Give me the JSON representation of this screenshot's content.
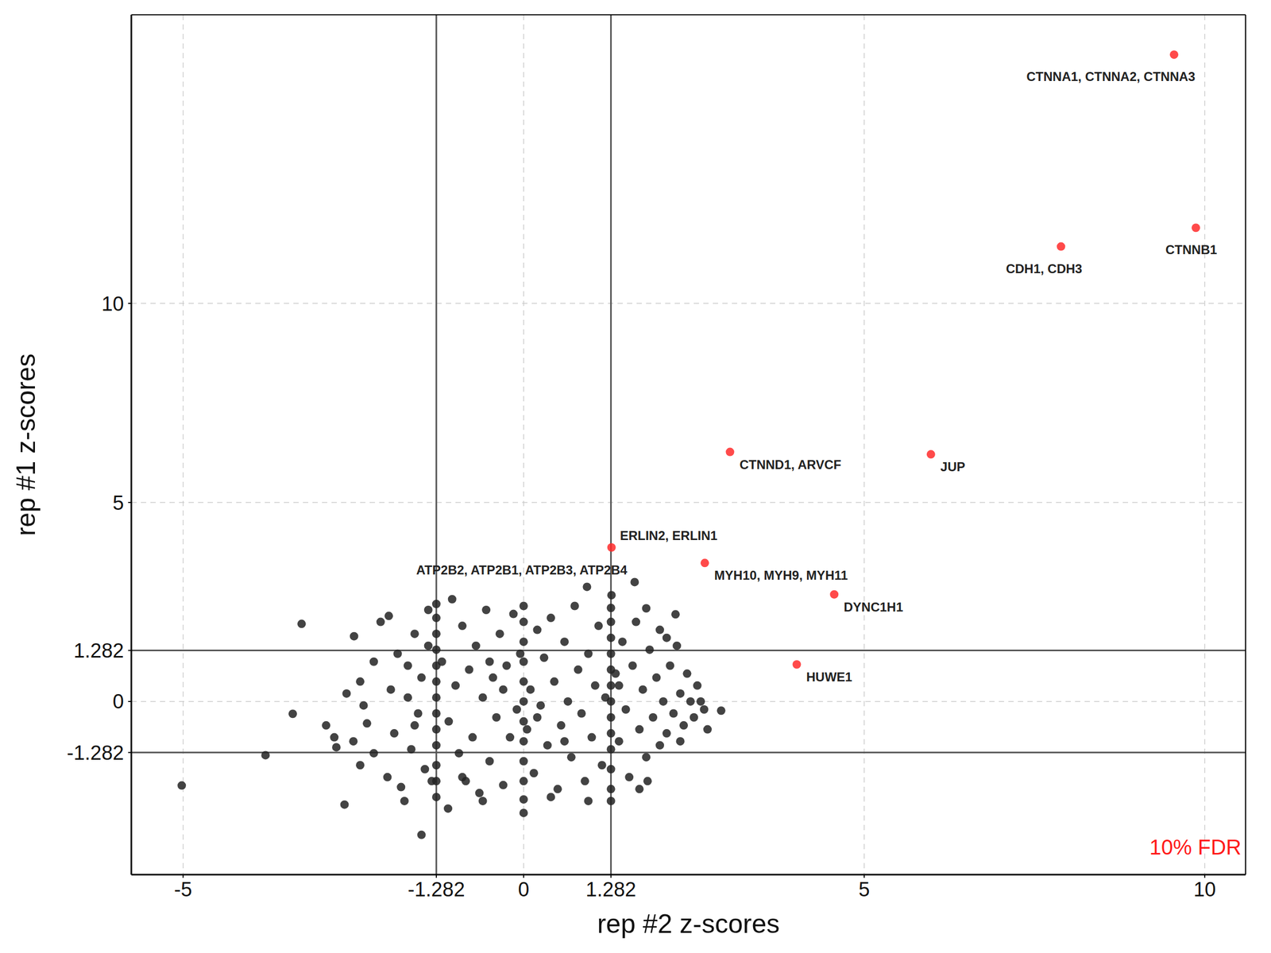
{
  "chart_data": {
    "type": "scatter",
    "x_label": "rep #2 z-scores",
    "y_label": "rep #1 z-scores",
    "xlim": [
      -5.76,
      10.6
    ],
    "ylim": [
      -4.35,
      17.25
    ],
    "xticks": [
      -5,
      -1.282,
      0,
      1.282,
      5,
      10
    ],
    "yticks": [
      -1.282,
      0,
      1.282,
      5,
      10
    ],
    "grid": true,
    "reference_lines": {
      "x": [
        -1.282,
        1.282
      ],
      "y": [
        -1.282,
        1.282
      ]
    },
    "annotations": [
      {
        "text": "10% FDR",
        "color": "#ff1a1a"
      }
    ],
    "series": [
      {
        "color": "#222222",
        "marker": "circle",
        "x": [
          -5.02,
          -3.79,
          -3.39,
          -3.26,
          -2.63,
          -2.49,
          -1.5,
          -1.11,
          0,
          2.9,
          2.7,
          0.93,
          1.29,
          1.8,
          2.23,
          -1.98,
          -1.4,
          -1.05,
          -2.78,
          -2.75,
          -2.4,
          -2.4,
          -2.35,
          -2.3,
          -2.2,
          -2.2,
          -2.0,
          -1.95,
          -1.9,
          -1.85,
          -1.8,
          -1.7,
          -1.65,
          -1.6,
          -1.55,
          -1.5,
          -1.45,
          -1.282,
          -1.282,
          -1.282,
          -1.282,
          -1.282,
          -1.282,
          -1.282,
          -1.282,
          -1.282,
          -1.282,
          -1.282,
          -1.282,
          -1.282,
          -1.2,
          -1.1,
          -1.0,
          -0.95,
          -0.9,
          -0.85,
          -0.8,
          -0.75,
          -0.7,
          -0.65,
          -0.6,
          -0.55,
          -0.5,
          -0.45,
          -0.4,
          -0.35,
          -0.3,
          -0.25,
          -0.2,
          -0.15,
          -0.1,
          -0.05,
          0,
          0,
          0,
          0,
          0,
          0,
          0,
          0,
          0,
          0,
          0,
          0.05,
          0.1,
          0.15,
          0.2,
          0.25,
          0.3,
          0.35,
          0.4,
          0.45,
          0.5,
          0.55,
          0.6,
          0.65,
          0.7,
          0.75,
          0.8,
          0.85,
          0.9,
          0.95,
          1.0,
          1.05,
          1.1,
          1.15,
          1.2,
          1.282,
          1.282,
          1.282,
          1.282,
          1.282,
          1.282,
          1.282,
          1.282,
          1.282,
          1.282,
          1.282,
          1.282,
          1.282,
          1.35,
          1.4,
          1.45,
          1.5,
          1.55,
          1.6,
          1.65,
          1.7,
          1.75,
          1.8,
          1.85,
          1.9,
          1.95,
          2.0,
          2.0,
          2.05,
          2.1,
          2.15,
          2.2,
          2.25,
          2.3,
          2.35,
          2.4,
          2.45,
          2.5,
          2.55,
          2.6,
          2.65,
          -2.9,
          -2.6,
          -2.1,
          -1.75,
          -1.6,
          -1.4,
          -1.35,
          -0.9,
          -0.6,
          0.4,
          0.95,
          1.7,
          1.82,
          2.1,
          2.3,
          -0.3,
          0.2,
          -0.5,
          0.6,
          -1.7,
          1.4,
          -2.5
        ],
        "y": [
          -2.11,
          -1.35,
          -0.31,
          1.95,
          -2.59,
          1.64,
          -3.35,
          -2.69,
          -2.46,
          -0.23,
          -0.7,
          2.88,
          2.67,
          2.34,
          2.19,
          2.15,
          2.3,
          2.57,
          -0.9,
          -1.15,
          -1.6,
          0.5,
          -0.1,
          -0.55,
          1.0,
          -1.3,
          -1.9,
          0.3,
          -0.8,
          1.2,
          -2.15,
          0.9,
          -1.2,
          1.7,
          -0.3,
          0.6,
          -1.7,
          -2.0,
          -1.6,
          -1.1,
          -0.7,
          -0.3,
          0.1,
          0.5,
          0.9,
          1.3,
          1.7,
          2.1,
          2.45,
          -2.4,
          1.0,
          -0.5,
          0.4,
          -1.3,
          1.9,
          -2.0,
          0.8,
          -0.9,
          1.4,
          -2.3,
          0.1,
          2.3,
          -1.5,
          0.6,
          -0.4,
          1.7,
          -2.1,
          0.9,
          -0.9,
          2.2,
          -0.2,
          1.2,
          -2.0,
          -1.5,
          -1.0,
          -0.5,
          0,
          0.5,
          1.0,
          1.5,
          2.0,
          2.4,
          -2.8,
          -0.7,
          0.3,
          -1.8,
          1.8,
          -0.1,
          1.1,
          -1.1,
          2.1,
          0.5,
          -2.2,
          -0.6,
          1.5,
          0,
          -1.4,
          2.4,
          0.8,
          -0.3,
          -2.0,
          1.2,
          -0.9,
          0.4,
          1.9,
          -1.6,
          0.1,
          -2.2,
          -1.7,
          -1.2,
          -0.8,
          -0.4,
          0,
          0.4,
          0.8,
          1.2,
          1.6,
          2.0,
          2.35,
          -2.5,
          0.7,
          -1.0,
          1.5,
          -0.2,
          -1.9,
          0.9,
          2.0,
          -0.7,
          0.3,
          -1.4,
          1.3,
          -0.4,
          0.6,
          -1.1,
          1.8,
          0,
          -0.8,
          0.9,
          -0.3,
          1.4,
          0.2,
          -0.6,
          0.7,
          0,
          -0.4,
          0.4,
          0,
          -0.2,
          -0.6,
          0.2,
          2.0,
          -2.5,
          -0.6,
          1.4,
          -2.0,
          -1.9,
          -2.5,
          -2.4,
          -2.5,
          -2.2,
          -2.0,
          1.6,
          -1.0,
          0.3,
          -0.4,
          1.0,
          -1.0,
          0.1,
          0.4,
          -1.0
        ]
      },
      {
        "color": "#222222",
        "marker": "circle",
        "x": [
          1.63
        ],
        "y": [
          3.0
        ],
        "labels": [
          "ATP2B2, ATP2B1, ATP2B3, ATP2B4"
        ]
      },
      {
        "color": "#ff2a2a",
        "marker": "circle",
        "x": [
          9.55,
          9.87,
          7.89,
          3.03,
          5.98,
          1.29,
          2.66,
          4.56,
          4.01
        ],
        "y": [
          16.25,
          11.9,
          11.43,
          6.27,
          6.21,
          3.87,
          3.48,
          2.69,
          0.93
        ],
        "labels": [
          "CTNNA1, CTNNA2, CTNNA3",
          "CTNNB1",
          "CDH1, CDH3",
          "CTNND1, ARVCF",
          "JUP",
          "ERLIN2, ERLIN1",
          "MYH10, MYH9, MYH11",
          "DYNC1H1",
          "HUWE1"
        ]
      }
    ]
  }
}
